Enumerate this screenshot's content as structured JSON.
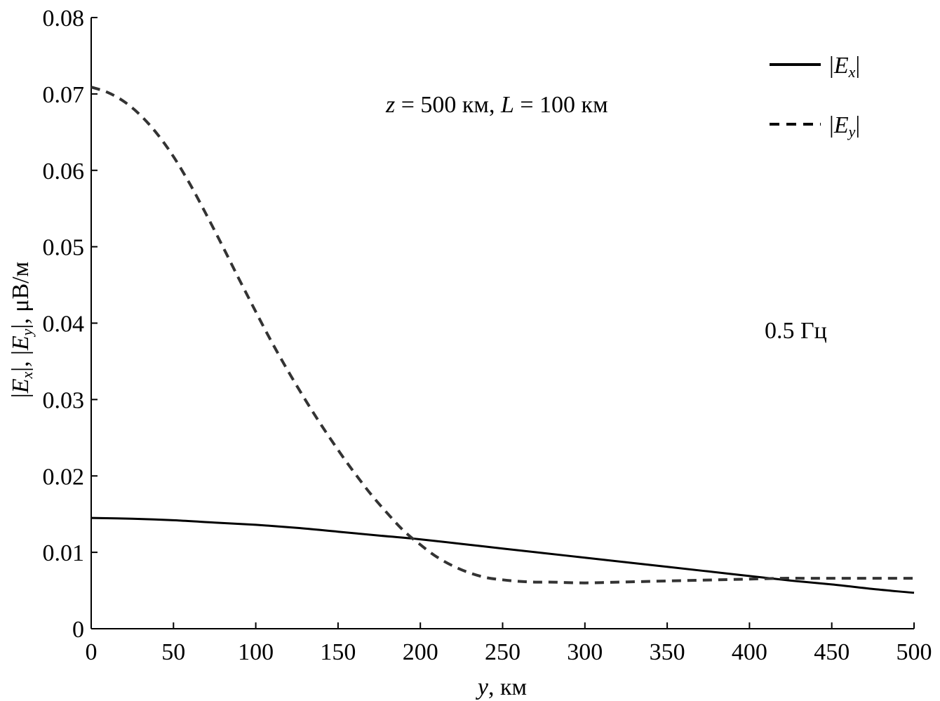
{
  "chart_data": {
    "type": "line",
    "title": "",
    "xlabel_var": "y",
    "xlabel_unit": ", км",
    "ylabel_part1": "E",
    "ylabel_sub1": "x",
    "ylabel_part2": "E",
    "ylabel_sub2": "y",
    "ylabel_unit": ", μВ/м",
    "xlim": [
      0,
      500
    ],
    "ylim": [
      0,
      0.08
    ],
    "xticks": [
      0,
      50,
      100,
      150,
      200,
      250,
      300,
      350,
      400,
      450,
      500
    ],
    "yticks": [
      0,
      0.01,
      0.02,
      0.03,
      0.04,
      0.05,
      0.06,
      0.07,
      0.08
    ],
    "xtick_labels": [
      "0",
      "50",
      "100",
      "150",
      "200",
      "250",
      "300",
      "350",
      "400",
      "450",
      "500"
    ],
    "ytick_labels": [
      "0",
      "0.01",
      "0.02",
      "0.03",
      "0.04",
      "0.05",
      "0.06",
      "0.07",
      "0.08"
    ],
    "grid": false,
    "legend_position": "top-right",
    "annotations": {
      "params": {
        "z_var": "z",
        "z_text": " = 500 км, ",
        "L_var": "L",
        "L_text": " = 100 км"
      },
      "freq": "0.5 Гц"
    },
    "series": [
      {
        "label_var": "E",
        "label_sub": "x",
        "style": "solid",
        "x": [
          0,
          25,
          50,
          75,
          100,
          125,
          150,
          175,
          200,
          225,
          250,
          275,
          300,
          325,
          350,
          375,
          400,
          425,
          450,
          475,
          500
        ],
        "y": [
          0.0145,
          0.0144,
          0.0142,
          0.0139,
          0.0136,
          0.0132,
          0.0127,
          0.0122,
          0.0117,
          0.0111,
          0.0105,
          0.0099,
          0.0093,
          0.0087,
          0.0081,
          0.0075,
          0.0069,
          0.0063,
          0.0058,
          0.0052,
          0.0047
        ]
      },
      {
        "label_var": "E",
        "label_sub": "y",
        "style": "dashed",
        "x": [
          0,
          10,
          20,
          30,
          40,
          50,
          60,
          70,
          80,
          90,
          100,
          110,
          120,
          130,
          140,
          150,
          160,
          170,
          180,
          190,
          200,
          210,
          220,
          230,
          240,
          250,
          260,
          270,
          280,
          300,
          320,
          340,
          360,
          380,
          400,
          420,
          440,
          460,
          480,
          500
        ],
        "y": [
          0.0709,
          0.0702,
          0.069,
          0.0672,
          0.0648,
          0.0618,
          0.0582,
          0.0542,
          0.05,
          0.0457,
          0.0415,
          0.0374,
          0.0336,
          0.03,
          0.0266,
          0.0234,
          0.0204,
          0.0176,
          0.0151,
          0.0128,
          0.011,
          0.0094,
          0.0082,
          0.0073,
          0.0067,
          0.0064,
          0.0062,
          0.0061,
          0.0061,
          0.006,
          0.0061,
          0.0062,
          0.0063,
          0.0064,
          0.0065,
          0.0066,
          0.0066,
          0.0066,
          0.0066,
          0.0066
        ]
      }
    ]
  }
}
